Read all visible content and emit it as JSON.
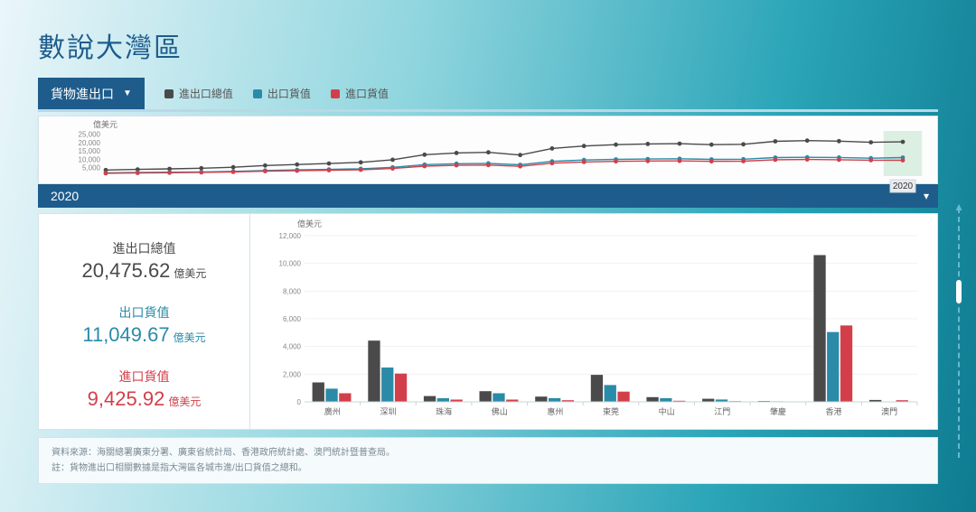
{
  "title": "數說大灣區",
  "dropdown": {
    "label": "貨物進出口"
  },
  "legend": [
    {
      "label": "進出口總值",
      "color": "#4a4a4a"
    },
    {
      "label": "出口貨值",
      "color": "#2a8ba8"
    },
    {
      "label": "進口貨值",
      "color": "#d23f4a"
    }
  ],
  "mini_chart": {
    "y_unit": "億美元",
    "y_ticks": [
      5000,
      10000,
      15000,
      20000,
      25000
    ],
    "ylim": [
      0,
      27000
    ],
    "x_count": 26,
    "highlight_index": 25,
    "highlight_label": "2020",
    "series": [
      {
        "color": "#4a4a4a",
        "values": [
          3600,
          4000,
          4300,
          4700,
          5300,
          6300,
          6900,
          7500,
          8200,
          9800,
          12800,
          13800,
          14200,
          12600,
          16500,
          18000,
          18800,
          19200,
          19400,
          18800,
          19000,
          20800,
          21200,
          20900,
          20200,
          20475
        ]
      },
      {
        "color": "#2a8ba8",
        "values": [
          1950,
          2150,
          2300,
          2500,
          2800,
          3350,
          3700,
          4000,
          4400,
          5250,
          6850,
          7400,
          7600,
          6750,
          8800,
          9600,
          10000,
          10200,
          10350,
          10000,
          10100,
          11050,
          11250,
          11100,
          10700,
          11050
        ]
      },
      {
        "color": "#d23f4a",
        "values": [
          1650,
          1850,
          2000,
          2200,
          2500,
          2950,
          3200,
          3500,
          3800,
          4550,
          5950,
          6400,
          6600,
          5850,
          7700,
          8400,
          8800,
          9000,
          9050,
          8800,
          8900,
          9750,
          9950,
          9800,
          9500,
          9426
        ]
      }
    ]
  },
  "year_strip": {
    "year": "2020"
  },
  "stats": [
    {
      "label": "進出口總值",
      "value": "20,475.62",
      "unit": "億美元",
      "color": "#4a4a4a"
    },
    {
      "label": "出口貨值",
      "value": "11,049.67",
      "unit": "億美元",
      "color": "#2a8ba8"
    },
    {
      "label": "進口貨值",
      "value": "9,425.92",
      "unit": "億美元",
      "color": "#d23f4a"
    }
  ],
  "bar_chart": {
    "y_unit": "億美元",
    "ylim": [
      0,
      12000
    ],
    "y_ticks": [
      0,
      2000,
      4000,
      6000,
      8000,
      10000,
      12000
    ],
    "categories": [
      "廣州",
      "深圳",
      "珠海",
      "佛山",
      "惠州",
      "東莞",
      "中山",
      "江門",
      "肇慶",
      "香港",
      "澳門"
    ],
    "series_colors": [
      "#4a4a4a",
      "#2a8ba8",
      "#d23f4a"
    ],
    "data": [
      [
        1400,
        950,
        620
      ],
      [
        4420,
        2480,
        2040
      ],
      [
        420,
        260,
        160
      ],
      [
        770,
        620,
        160
      ],
      [
        380,
        270,
        120
      ],
      [
        1950,
        1210,
        740
      ],
      [
        340,
        260,
        80
      ],
      [
        220,
        170,
        50
      ],
      [
        60,
        40,
        20
      ],
      [
        10600,
        5040,
        5520
      ],
      [
        140,
        20,
        120
      ]
    ],
    "bar_group_width": 0.72,
    "bar_gap": 0.05
  },
  "footnotes": [
    "資料來源：海關總署廣東分署、廣東省統計局、香港政府統計處、澳門統計暨普查局。",
    "註：貨物進出口相關數據是指大灣區各城市進/出口貨值之總和。"
  ]
}
